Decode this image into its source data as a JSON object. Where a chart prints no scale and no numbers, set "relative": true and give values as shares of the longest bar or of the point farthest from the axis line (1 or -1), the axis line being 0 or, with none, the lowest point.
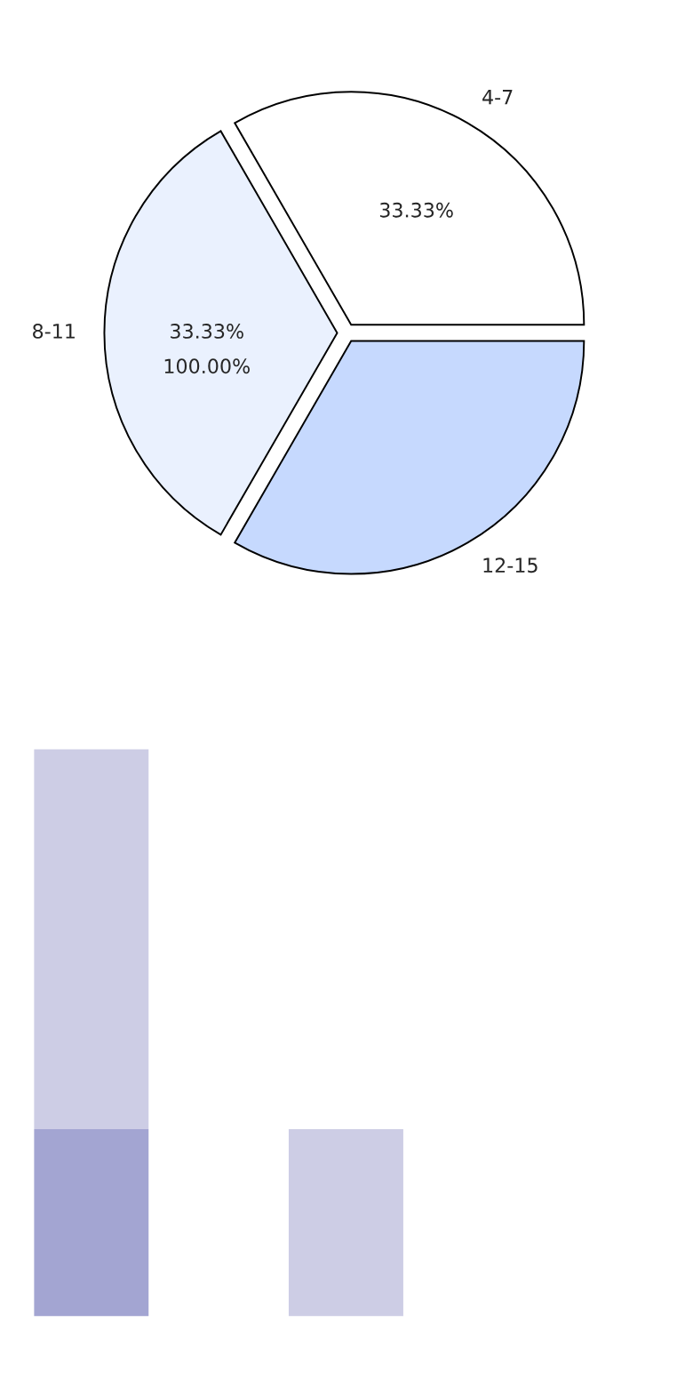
{
  "chart_data": [
    {
      "type": "pie",
      "categories": [
        "4-7",
        "8-11",
        "12-15"
      ],
      "values": [
        33.33,
        33.33,
        33.33
      ],
      "colors": [
        "#ffffff",
        "#eaf1fe",
        "#c6d9fe"
      ],
      "value_labels": [
        "33.33%",
        "33.33%",
        null
      ],
      "annotations": [
        "100.00%"
      ]
    },
    {
      "type": "bar",
      "relative": true,
      "stacked": true,
      "categories": [
        null,
        null
      ],
      "series": [
        {
          "color": "#a3a5d2",
          "values": [
            0.33,
            0
          ]
        },
        {
          "color": "#cdcde5",
          "values": [
            0.67,
            0.33
          ]
        }
      ]
    }
  ]
}
